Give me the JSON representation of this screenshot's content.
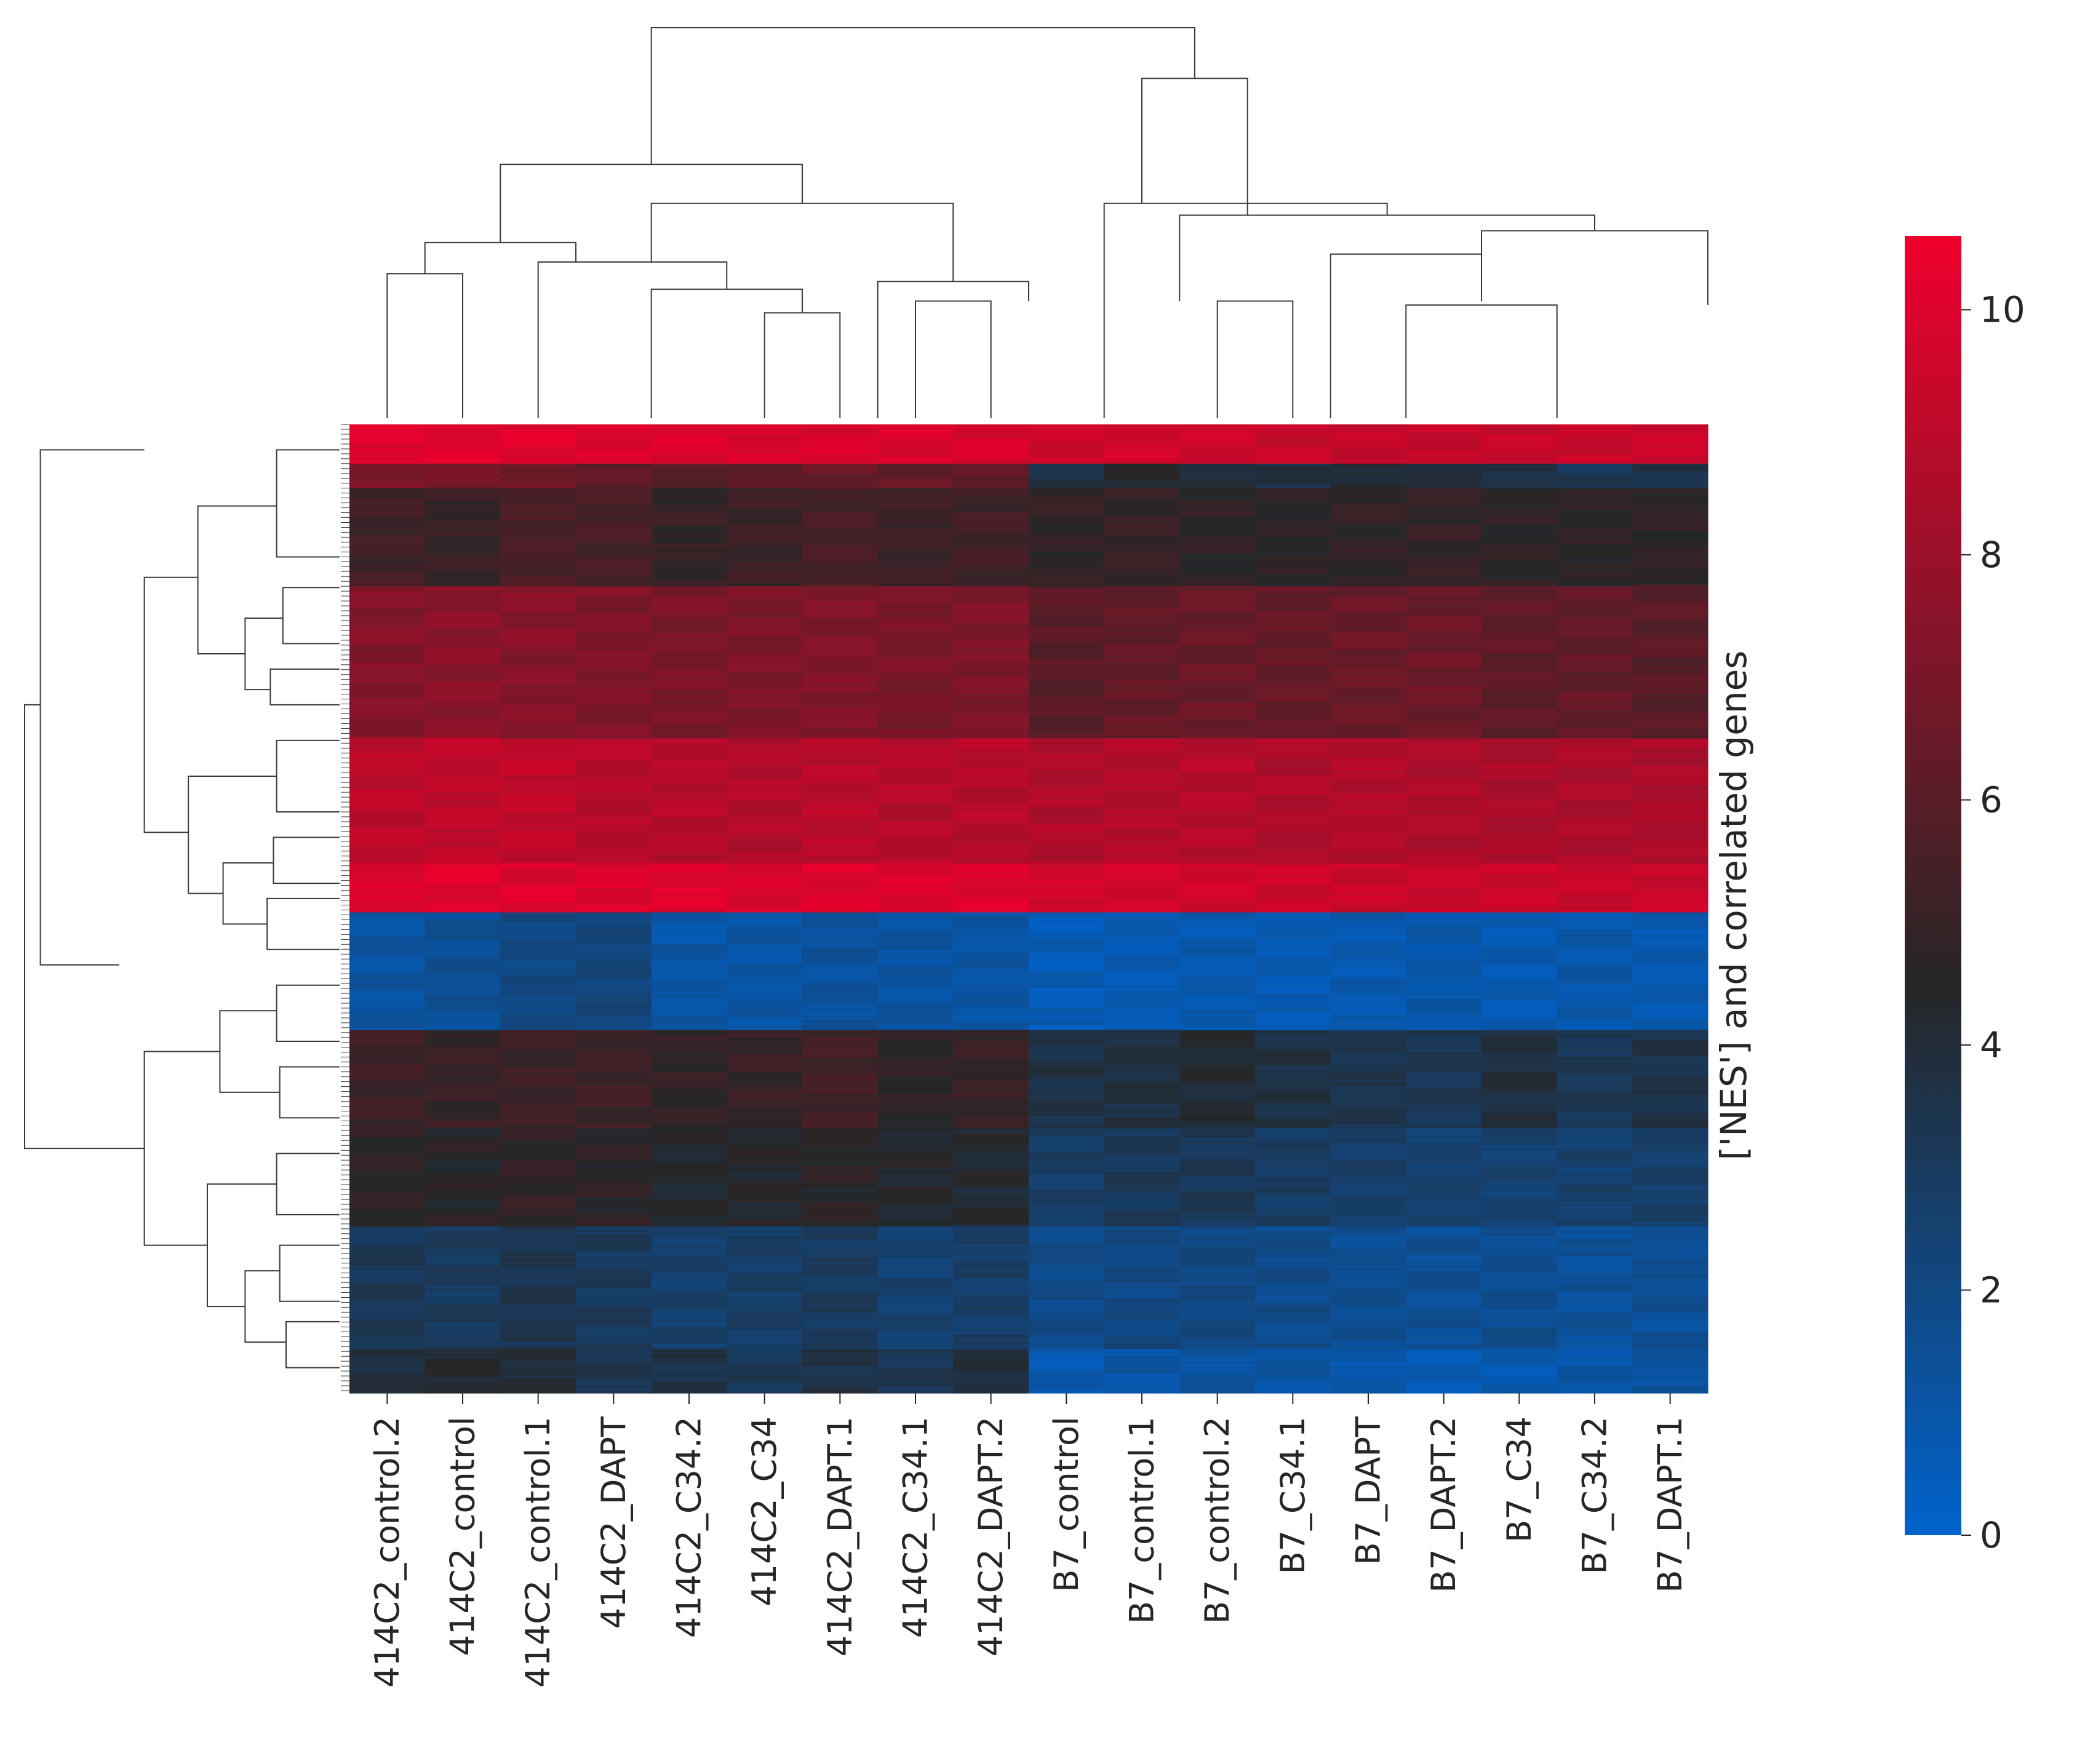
{
  "chart_data": {
    "type": "heatmap",
    "title": "",
    "xlabel": "",
    "ylabel": "['NES'] and correlated genes",
    "columns": [
      "414C2_control.2",
      "414C2_control",
      "414C2_control.1",
      "414C2_DAPT",
      "414C2_C34.2",
      "414C2_C34",
      "414C2_DAPT.1",
      "414C2_C34.1",
      "414C2_DAPT.2",
      "B7_control",
      "B7_control.1",
      "B7_control.2",
      "B7_C34.1",
      "B7_DAPT",
      "B7_DAPT.2",
      "B7_C34",
      "B7_C34.2",
      "B7_DAPT.1"
    ],
    "row_blocks": [
      {
        "rows": 16,
        "values": [
          10.1,
          10.1,
          10.1,
          10.0,
          10.0,
          9.9,
          9.9,
          9.9,
          9.9,
          9.5,
          9.6,
          9.5,
          9.4,
          9.3,
          9.3,
          9.4,
          9.3,
          9.4
        ]
      },
      {
        "rows": 10,
        "values": [
          7.0,
          6.9,
          6.8,
          6.2,
          6.0,
          6.1,
          6.4,
          6.3,
          6.3,
          3.7,
          4.3,
          4.0,
          3.6,
          4.2,
          3.9,
          3.8,
          3.3,
          3.6
        ]
      },
      {
        "rows": 40,
        "values": [
          5.3,
          5.0,
          5.6,
          5.5,
          4.9,
          5.1,
          5.5,
          5.2,
          5.3,
          4.8,
          5.0,
          4.7,
          4.6,
          4.8,
          4.9,
          4.7,
          4.6,
          4.8
        ]
      },
      {
        "rows": 62,
        "values": [
          7.3,
          7.5,
          7.4,
          7.2,
          7.0,
          7.1,
          7.2,
          7.0,
          7.1,
          6.0,
          6.3,
          6.5,
          6.4,
          6.5,
          6.6,
          6.2,
          6.3,
          6.0
        ]
      },
      {
        "rows": 51,
        "values": [
          9.0,
          9.1,
          9.2,
          8.8,
          8.8,
          8.7,
          8.9,
          8.8,
          8.8,
          8.6,
          8.7,
          8.8,
          8.6,
          8.7,
          8.6,
          8.5,
          8.5,
          8.5
        ]
      },
      {
        "rows": 20,
        "values": [
          10.0,
          10.1,
          10.0,
          10.0,
          10.1,
          9.9,
          10.0,
          10.0,
          10.0,
          9.7,
          9.7,
          9.6,
          9.5,
          9.4,
          9.4,
          9.5,
          9.4,
          9.4
        ]
      },
      {
        "rows": 48,
        "values": [
          1.2,
          1.5,
          2.0,
          2.2,
          1.0,
          1.1,
          1.3,
          1.2,
          1.1,
          0.6,
          0.7,
          0.8,
          0.7,
          0.8,
          0.9,
          0.7,
          0.9,
          0.8
        ]
      },
      {
        "rows": 40,
        "values": [
          5.2,
          5.0,
          5.1,
          5.2,
          4.8,
          5.0,
          5.3,
          4.7,
          5.0,
          3.6,
          3.8,
          4.1,
          3.7,
          3.4,
          3.3,
          3.8,
          3.2,
          3.6
        ]
      },
      {
        "rows": 40,
        "values": [
          4.7,
          4.5,
          4.8,
          4.6,
          4.3,
          4.4,
          4.6,
          4.3,
          4.2,
          2.8,
          3.1,
          3.2,
          2.9,
          2.7,
          2.6,
          2.5,
          2.6,
          2.7
        ]
      },
      {
        "rows": 50,
        "values": [
          3.2,
          3.0,
          3.4,
          3.1,
          2.6,
          2.8,
          3.0,
          2.5,
          2.7,
          1.8,
          2.0,
          2.1,
          1.8,
          1.6,
          1.5,
          1.6,
          1.4,
          1.5
        ]
      },
      {
        "rows": 18,
        "values": [
          3.8,
          4.3,
          4.0,
          3.4,
          3.6,
          3.2,
          3.6,
          3.3,
          3.9,
          0.8,
          1.0,
          1.2,
          1.1,
          0.9,
          0.7,
          0.8,
          1.1,
          1.2
        ]
      }
    ],
    "colorbar": {
      "min": 0,
      "max": 10.6,
      "ticks": [
        "0",
        "2",
        "4",
        "6",
        "8",
        "10"
      ],
      "low_color": "#0063cc",
      "mid_color": "#262626",
      "high_color": "#f0002c"
    },
    "column_dendrogram": [
      [
        [
          5,
          5,
          6,
          6
        ],
        [
          0,
          0.27,
          0.27,
          0
        ]
      ],
      [
        [
          3.5,
          3.5,
          5.5,
          5.5
        ],
        [
          0,
          0.33,
          0.33,
          0.27
        ]
      ],
      [
        [
          2,
          2,
          4.5,
          4.5
        ],
        [
          0,
          0.4,
          0.4,
          0.33
        ]
      ],
      [
        [
          7,
          7,
          8,
          8
        ],
        [
          0,
          0.3,
          0.3,
          0
        ]
      ],
      [
        [
          11,
          11,
          12,
          12
        ],
        [
          0,
          0.3,
          0.3,
          0
        ]
      ],
      [
        [
          0,
          0,
          1,
          1
        ],
        [
          0,
          0.37,
          0.37,
          0
        ]
      ],
      [
        [
          12.5,
          12.5,
          14.5,
          14.5
        ],
        [
          0,
          0.42,
          0.42,
          0.3
        ]
      ],
      [
        [
          13.5,
          13.5,
          15.5,
          15.5
        ],
        [
          0,
          0.29,
          0.29,
          0
        ]
      ],
      [
        [
          6.5,
          6.5,
          8.5,
          8.5
        ],
        [
          0,
          0.35,
          0.35,
          0.3
        ]
      ],
      [
        [
          14.5,
          14.5,
          17.5,
          17.5
        ],
        [
          0.42,
          0.48,
          0.48,
          0.29
        ]
      ],
      [
        [
          10.5,
          10.5,
          16,
          16
        ],
        [
          0.3,
          0.52,
          0.52,
          0.48
        ]
      ],
      [
        [
          9.5,
          9.5,
          13.25,
          13.25
        ],
        [
          0,
          0.55,
          0.55,
          0.52
        ]
      ],
      [
        [
          0.5,
          0.5,
          2.5,
          2.5
        ],
        [
          0.37,
          0.45,
          0.45,
          0.4
        ]
      ],
      [
        [
          3.5,
          3.5,
          7.5,
          7.5
        ],
        [
          0.4,
          0.55,
          0.55,
          0.35
        ]
      ],
      [
        [
          1.5,
          1.5,
          5.5,
          5.5
        ],
        [
          0.45,
          0.65,
          0.65,
          0.55
        ]
      ],
      [
        [
          10,
          10,
          11.4,
          11.4
        ],
        [
          0.55,
          0.87,
          0.87,
          0.52
        ]
      ],
      [
        [
          3.5,
          3.5,
          10.7,
          10.7
        ],
        [
          0.65,
          1.0,
          1.0,
          0.87
        ]
      ]
    ],
    "row_dendrogram": [
      [
        [
          0.5,
          0.5,
          2.6,
          2.6
        ],
        [
          0,
          0.2,
          0.2,
          0
        ]
      ],
      [
        [
          3.2,
          3.2,
          4.3,
          4.3
        ],
        [
          0,
          0.18,
          0.18,
          0
        ]
      ],
      [
        [
          4.8,
          4.8,
          5.5,
          5.5
        ],
        [
          0,
          0.22,
          0.22,
          0
        ]
      ],
      [
        [
          3.8,
          3.8,
          5.2,
          5.2
        ],
        [
          0.18,
          0.3,
          0.3,
          0.22
        ]
      ],
      [
        [
          1.6,
          1.6,
          4.5,
          4.5
        ],
        [
          0.2,
          0.45,
          0.45,
          0.3
        ]
      ],
      [
        [
          6.2,
          6.2,
          7.6,
          7.6
        ],
        [
          0,
          0.2,
          0.2,
          0
        ]
      ],
      [
        [
          8.1,
          8.1,
          9.0,
          9.0
        ],
        [
          0,
          0.21,
          0.21,
          0
        ]
      ],
      [
        [
          9.3,
          9.3,
          10.3,
          10.3
        ],
        [
          0,
          0.23,
          0.23,
          0
        ]
      ],
      [
        [
          8.6,
          8.6,
          9.8,
          9.8
        ],
        [
          0.21,
          0.37,
          0.37,
          0.23
        ]
      ],
      [
        [
          6.9,
          6.9,
          9.2,
          9.2
        ],
        [
          0.2,
          0.48,
          0.48,
          0.37
        ]
      ],
      [
        [
          3.0,
          3.0,
          8.0,
          8.0
        ],
        [
          0.45,
          0.62,
          0.62,
          0.48
        ]
      ],
      [
        [
          0.5,
          0.5,
          10.6,
          10.6
        ],
        [
          0.62,
          0.95,
          0.95,
          0.7
        ]
      ],
      [
        [
          11.0,
          11.0,
          12.1,
          12.1
        ],
        [
          0,
          0.2,
          0.2,
          0
        ]
      ],
      [
        [
          12.6,
          12.6,
          13.6,
          13.6
        ],
        [
          0,
          0.19,
          0.19,
          0
        ]
      ],
      [
        [
          11.5,
          11.5,
          13.1,
          13.1
        ],
        [
          0.2,
          0.38,
          0.38,
          0.19
        ]
      ],
      [
        [
          14.3,
          14.3,
          15.5,
          15.5
        ],
        [
          0,
          0.2,
          0.2,
          0
        ]
      ],
      [
        [
          16.1,
          16.1,
          17.2,
          17.2
        ],
        [
          0,
          0.19,
          0.19,
          0
        ]
      ],
      [
        [
          17.6,
          17.6,
          18.5,
          18.5
        ],
        [
          0,
          0.17,
          0.17,
          0
        ]
      ],
      [
        [
          16.6,
          16.6,
          18.0,
          18.0
        ],
        [
          0.19,
          0.3,
          0.3,
          0.17
        ]
      ],
      [
        [
          14.9,
          14.9,
          17.3,
          17.3
        ],
        [
          0.2,
          0.42,
          0.42,
          0.3
        ]
      ],
      [
        [
          12.3,
          12.3,
          16.1,
          16.1
        ],
        [
          0.38,
          0.62,
          0.62,
          0.42
        ]
      ],
      [
        [
          5.5,
          5.5,
          14.2,
          14.2
        ],
        [
          0.95,
          1.0,
          1.0,
          0.62
        ]
      ]
    ]
  }
}
